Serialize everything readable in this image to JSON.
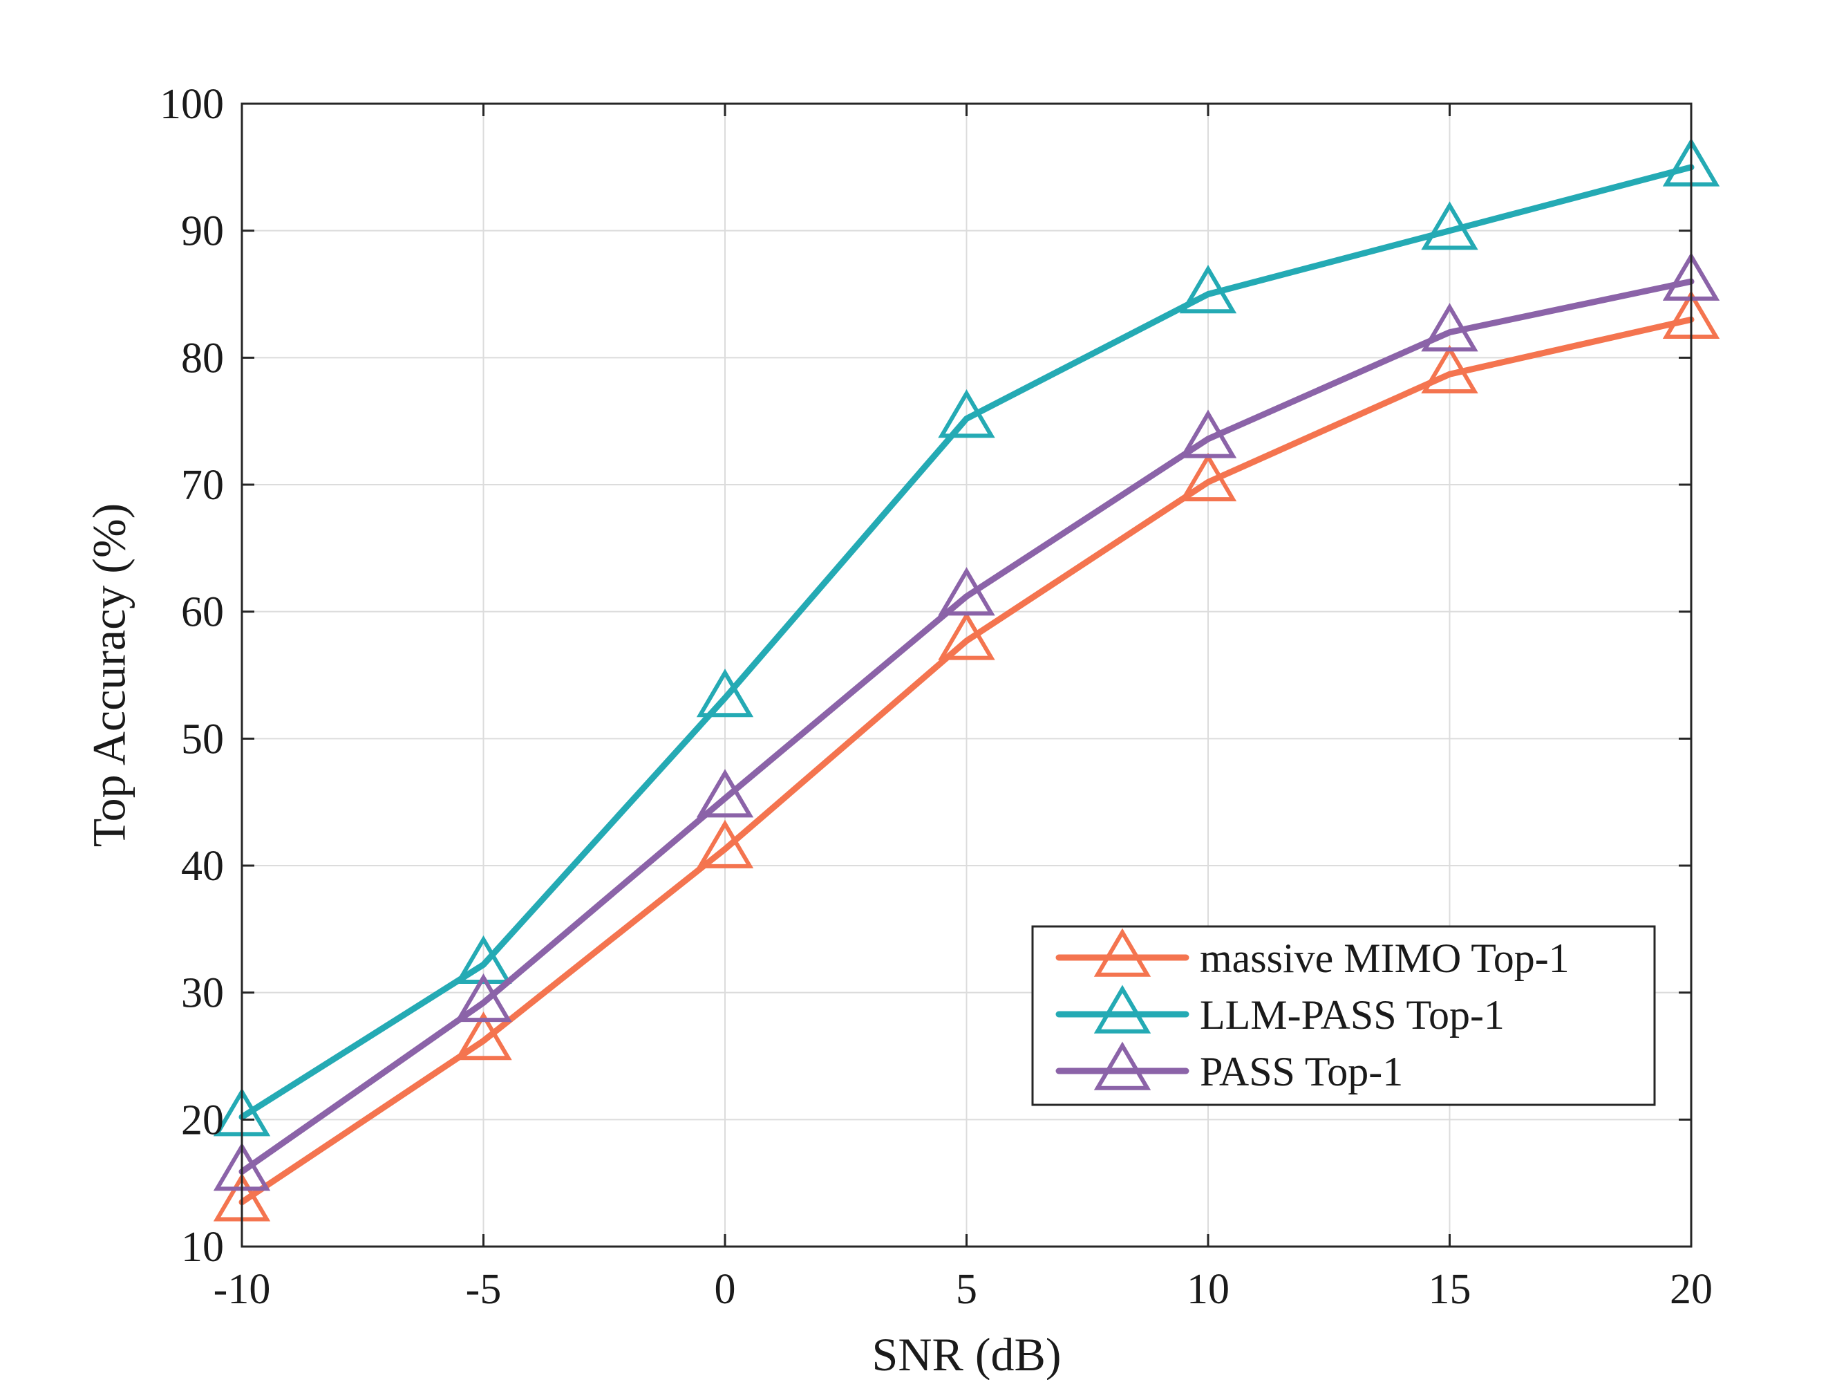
{
  "chart_data": {
    "type": "line",
    "title": "",
    "xlabel": "SNR (dB)",
    "ylabel": "Top Accuracy (%)",
    "x": [
      -10,
      -5,
      0,
      5,
      10,
      15,
      20
    ],
    "xlim": [
      -10,
      20
    ],
    "ylim": [
      10,
      100
    ],
    "xticks": [
      -10,
      -5,
      0,
      5,
      10,
      15,
      20
    ],
    "yticks": [
      10,
      20,
      30,
      40,
      50,
      60,
      70,
      80,
      90,
      100
    ],
    "grid": true,
    "legend_position": "bottom-right",
    "series": [
      {
        "name": "massive MIMO Top-1",
        "color": "#f4744f",
        "marker": "triangle",
        "values": [
          13.5,
          26.2,
          41.3,
          57.7,
          70.2,
          78.7,
          83.0
        ]
      },
      {
        "name": "LLM-PASS Top-1",
        "color": "#24aab4",
        "marker": "triangle",
        "values": [
          20.2,
          32.2,
          53.2,
          75.2,
          85.0,
          90.0,
          95.0
        ]
      },
      {
        "name": "PASS Top-1",
        "color": "#8b63a8",
        "marker": "triangle",
        "values": [
          15.9,
          29.2,
          45.3,
          61.2,
          73.6,
          82.0,
          86.0
        ]
      }
    ]
  }
}
